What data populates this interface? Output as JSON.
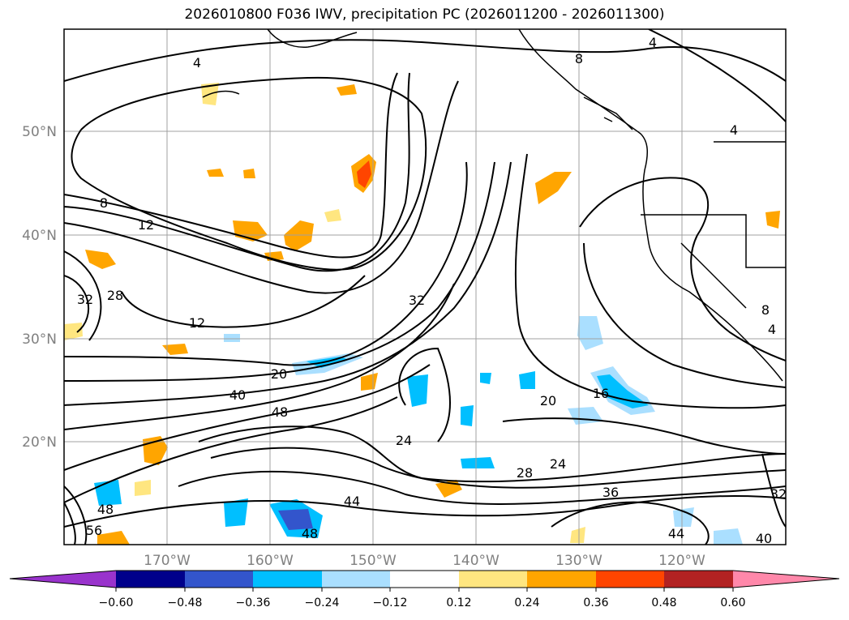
{
  "title": "2026010800 F036 IWV, precipitation PC (2026011200 - 2026011300)",
  "axes": {
    "lat_labels": [
      "50°N",
      "40°N",
      "30°N",
      "20°N"
    ],
    "lon_labels": [
      "170°W",
      "160°W",
      "150°W",
      "140°W",
      "130°W",
      "120°W"
    ]
  },
  "colorbar": {
    "ticks": [
      "−0.60",
      "−0.48",
      "−0.36",
      "−0.24",
      "−0.12",
      "0.12",
      "0.24",
      "0.36",
      "0.48",
      "0.60"
    ],
    "colors": [
      "#9933cc",
      "#00008b",
      "#3355cc",
      "#00bfff",
      "#aadfff",
      "#ffffff",
      "#ffe680",
      "#ffa500",
      "#ff4500",
      "#b22222",
      "#ff88aa"
    ]
  },
  "contour_labels": {
    "c1": "4",
    "c2": "8",
    "c3": "4",
    "c4": "4",
    "c5": "8",
    "c6": "12",
    "c7": "28",
    "c8": "32",
    "c9": "12",
    "c10": "32",
    "c11": "20",
    "c12": "40",
    "c13": "48",
    "c14": "20",
    "c15": "16",
    "c16": "24",
    "c17": "28",
    "c18": "24",
    "c19": "36",
    "c20": "44",
    "c21": "48",
    "c22": "56",
    "c23": "48",
    "c24": "44",
    "c25": "40",
    "c26": "32",
    "c27": "8",
    "c28": "4"
  }
}
